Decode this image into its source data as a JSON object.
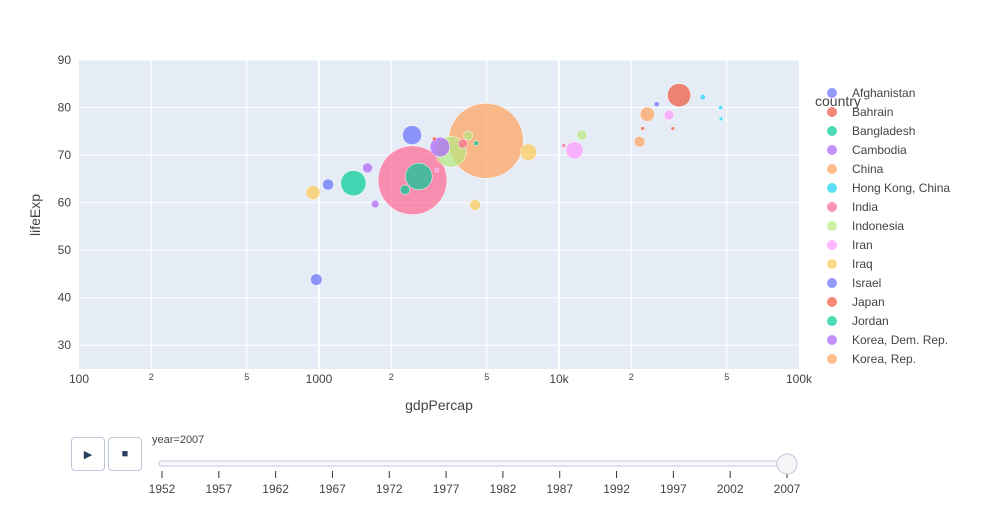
{
  "chart_data": {
    "type": "scatter",
    "xlabel": "gdpPercap",
    "ylabel": "lifeExp",
    "x_scale": "log",
    "xlim": [
      100,
      100000
    ],
    "ylim": [
      25,
      90
    ],
    "x_ticks": [
      "100",
      "2",
      "5",
      "1000",
      "2",
      "5",
      "10k",
      "2",
      "5",
      "100k"
    ],
    "y_ticks": [
      "30",
      "40",
      "50",
      "60",
      "70",
      "80",
      "90"
    ],
    "legend_title": "country",
    "legend_position": "right",
    "legend": [
      {
        "name": "Afghanistan",
        "color": "#636efa"
      },
      {
        "name": "Bahrain",
        "color": "#EF553B"
      },
      {
        "name": "Bangladesh",
        "color": "#00cc96"
      },
      {
        "name": "Cambodia",
        "color": "#ab63fa"
      },
      {
        "name": "China",
        "color": "#FFA15A"
      },
      {
        "name": "Hong Kong, China",
        "color": "#19d3f3"
      },
      {
        "name": "India",
        "color": "#FF6692"
      },
      {
        "name": "Indonesia",
        "color": "#B6E880"
      },
      {
        "name": "Iran",
        "color": "#FF97FF"
      },
      {
        "name": "Iraq",
        "color": "#FECB52"
      },
      {
        "name": "Israel",
        "color": "#636efa"
      },
      {
        "name": "Japan",
        "color": "#EF553B"
      },
      {
        "name": "Jordan",
        "color": "#00cc96"
      },
      {
        "name": "Korea, Dem. Rep.",
        "color": "#ab63fa"
      },
      {
        "name": "Korea, Rep.",
        "color": "#FFA15A"
      }
    ],
    "points": [
      {
        "x": 974.6,
        "y": 43.8,
        "pop": 31889923,
        "color": "#636efa"
      },
      {
        "x": 29796,
        "y": 75.6,
        "pop": 708573,
        "color": "#EF553B"
      },
      {
        "x": 1391,
        "y": 64.1,
        "pop": 150448339,
        "color": "#00cc96"
      },
      {
        "x": 1714,
        "y": 59.7,
        "pop": 14131858,
        "color": "#ab63fa"
      },
      {
        "x": 4959,
        "y": 73.0,
        "pop": 1318683096,
        "color": "#FFA15A"
      },
      {
        "x": 39725,
        "y": 82.2,
        "pop": 6980412,
        "color": "#19d3f3"
      },
      {
        "x": 2452,
        "y": 64.7,
        "pop": 1110396331,
        "color": "#FF6692"
      },
      {
        "x": 3541,
        "y": 70.7,
        "pop": 223547000,
        "color": "#B6E880"
      },
      {
        "x": 11606,
        "y": 71.0,
        "pop": 69453570,
        "color": "#FF97FF"
      },
      {
        "x": 4471,
        "y": 59.5,
        "pop": 27499638,
        "color": "#FECB52"
      },
      {
        "x": 25523,
        "y": 80.7,
        "pop": 6426679,
        "color": "#636efa"
      },
      {
        "x": 31656,
        "y": 82.6,
        "pop": 127467972,
        "color": "#EF553B"
      },
      {
        "x": 4519,
        "y": 72.5,
        "pop": 6053193,
        "color": "#00cc96"
      },
      {
        "x": 1593,
        "y": 67.3,
        "pop": 23301725,
        "color": "#ab63fa"
      },
      {
        "x": 23348,
        "y": 78.6,
        "pop": 49044790,
        "color": "#FFA15A"
      },
      {
        "x": 47307,
        "y": 77.6,
        "pop": 2505559,
        "color": "#19d3f3"
      },
      {
        "x": 10461,
        "y": 72.0,
        "pop": 3921278,
        "color": "#FF6692"
      },
      {
        "x": 12452,
        "y": 74.2,
        "pop": 24821286,
        "color": "#B6E880"
      },
      {
        "x": 3096,
        "y": 66.8,
        "pop": 2874127,
        "color": "#FF97FF"
      },
      {
        "x": 944,
        "y": 62.1,
        "pop": 47761980,
        "color": "#FECB52"
      },
      {
        "x": 1091,
        "y": 63.8,
        "pop": 28901790,
        "color": "#636efa"
      },
      {
        "x": 22316,
        "y": 75.6,
        "pop": 3204897,
        "color": "#EF553B"
      },
      {
        "x": 2606,
        "y": 65.5,
        "pop": 169270617,
        "color": "#00cc96"
      },
      {
        "x": 3190,
        "y": 71.7,
        "pop": 91077287,
        "color": "#ab63fa"
      },
      {
        "x": 21655,
        "y": 72.8,
        "pop": 27601038,
        "color": "#FFA15A"
      },
      {
        "x": 47143,
        "y": 80.0,
        "pop": 4553009,
        "color": "#19d3f3"
      },
      {
        "x": 3970,
        "y": 72.4,
        "pop": 20378239,
        "color": "#FF6692"
      },
      {
        "x": 4185,
        "y": 74.1,
        "pop": 19314747,
        "color": "#B6E880"
      },
      {
        "x": 28718,
        "y": 78.4,
        "pop": 23174294,
        "color": "#FF97FF"
      },
      {
        "x": 7458,
        "y": 70.6,
        "pop": 65068149,
        "color": "#FECB52"
      },
      {
        "x": 2442,
        "y": 74.2,
        "pop": 85262356,
        "color": "#636efa"
      },
      {
        "x": 3025,
        "y": 73.4,
        "pop": 4018332,
        "color": "#EF553B"
      },
      {
        "x": 2281,
        "y": 62.7,
        "pop": 22211743,
        "color": "#00cc96"
      }
    ]
  },
  "slider": {
    "current_label": "year=2007",
    "value": 2007,
    "years": [
      "1952",
      "1957",
      "1962",
      "1967",
      "1972",
      "1977",
      "1982",
      "1987",
      "1992",
      "1997",
      "2002",
      "2007"
    ]
  },
  "controls": {
    "play_icon": "▶",
    "stop_icon": "■"
  }
}
